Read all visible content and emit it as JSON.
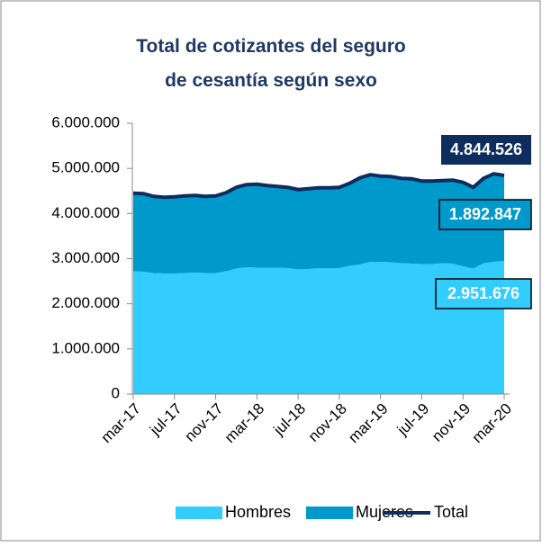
{
  "chart_data": {
    "type": "stacked-area-line",
    "title": "Total de cotizantes del seguro de cesantía según sexo",
    "categories": [
      "mar-17",
      null,
      null,
      null,
      "jul-17",
      null,
      null,
      null,
      "nov-17",
      null,
      null,
      null,
      "mar-18",
      null,
      null,
      null,
      "jul-18",
      null,
      null,
      null,
      "nov-18",
      null,
      null,
      null,
      "mar-19",
      null,
      null,
      null,
      "jul-19",
      null,
      null,
      null,
      "nov-19",
      null,
      null,
      null,
      "mar-20"
    ],
    "series": [
      {
        "name": "Hombres",
        "color": "#33ccff",
        "type": "area",
        "values": [
          2720000,
          2710000,
          2680000,
          2670000,
          2670000,
          2680000,
          2690000,
          2680000,
          2680000,
          2720000,
          2780000,
          2810000,
          2800000,
          2800000,
          2800000,
          2790000,
          2760000,
          2770000,
          2790000,
          2790000,
          2790000,
          2840000,
          2870000,
          2930000,
          2930000,
          2920000,
          2900000,
          2890000,
          2880000,
          2880000,
          2900000,
          2890000,
          2830000,
          2780000,
          2900000,
          2930000,
          2951676
        ],
        "value_labels": [
          null,
          null,
          null,
          null,
          null,
          null,
          null,
          null,
          null,
          null,
          null,
          null,
          null,
          null,
          null,
          null,
          null,
          null,
          null,
          null,
          null,
          null,
          null,
          null,
          null,
          null,
          null,
          null,
          null,
          null,
          null,
          null,
          null,
          null,
          null,
          null,
          "2.951.676"
        ]
      },
      {
        "name": "Mujeres",
        "color": "#0099cc",
        "type": "area",
        "values": [
          1730000,
          1730000,
          1700000,
          1690000,
          1700000,
          1710000,
          1710000,
          1700000,
          1710000,
          1740000,
          1800000,
          1830000,
          1850000,
          1820000,
          1800000,
          1790000,
          1770000,
          1780000,
          1780000,
          1780000,
          1790000,
          1830000,
          1920000,
          1930000,
          1900000,
          1900000,
          1880000,
          1880000,
          1840000,
          1840000,
          1830000,
          1850000,
          1860000,
          1800000,
          1880000,
          1950000,
          1892847
        ],
        "value_labels": [
          null,
          null,
          null,
          null,
          null,
          null,
          null,
          null,
          null,
          null,
          null,
          null,
          null,
          null,
          null,
          null,
          null,
          null,
          null,
          null,
          null,
          null,
          null,
          null,
          null,
          null,
          null,
          null,
          null,
          null,
          null,
          null,
          null,
          null,
          null,
          null,
          "1.892.847"
        ]
      },
      {
        "name": "Total",
        "color": "#0d2d5e",
        "type": "line",
        "values": [
          4450000,
          4440000,
          4380000,
          4360000,
          4370000,
          4390000,
          4400000,
          4380000,
          4390000,
          4460000,
          4580000,
          4640000,
          4650000,
          4620000,
          4600000,
          4580000,
          4530000,
          4550000,
          4570000,
          4570000,
          4580000,
          4670000,
          4790000,
          4860000,
          4830000,
          4820000,
          4780000,
          4770000,
          4720000,
          4720000,
          4730000,
          4740000,
          4690000,
          4580000,
          4780000,
          4880000,
          4844526
        ],
        "value_labels": [
          null,
          null,
          null,
          null,
          null,
          null,
          null,
          null,
          null,
          null,
          null,
          null,
          null,
          null,
          null,
          null,
          null,
          null,
          null,
          null,
          null,
          null,
          null,
          null,
          null,
          null,
          null,
          null,
          null,
          null,
          null,
          null,
          null,
          null,
          null,
          null,
          "4.844.526"
        ]
      }
    ],
    "ylim": [
      0,
      6000000
    ],
    "yticks": [
      0,
      {
        "value": 1000000,
        "label": "1.000.000"
      },
      {
        "value": 2000000,
        "label": "2.000.000"
      },
      {
        "value": 3000000,
        "label": "3.000.000"
      },
      {
        "value": 4000000,
        "label": "4.000.000"
      },
      {
        "value": 5000000,
        "label": "5.000.000"
      },
      {
        "value": 6000000,
        "label": "6.000.000"
      }
    ],
    "grid": false,
    "legend": "bottom"
  }
}
